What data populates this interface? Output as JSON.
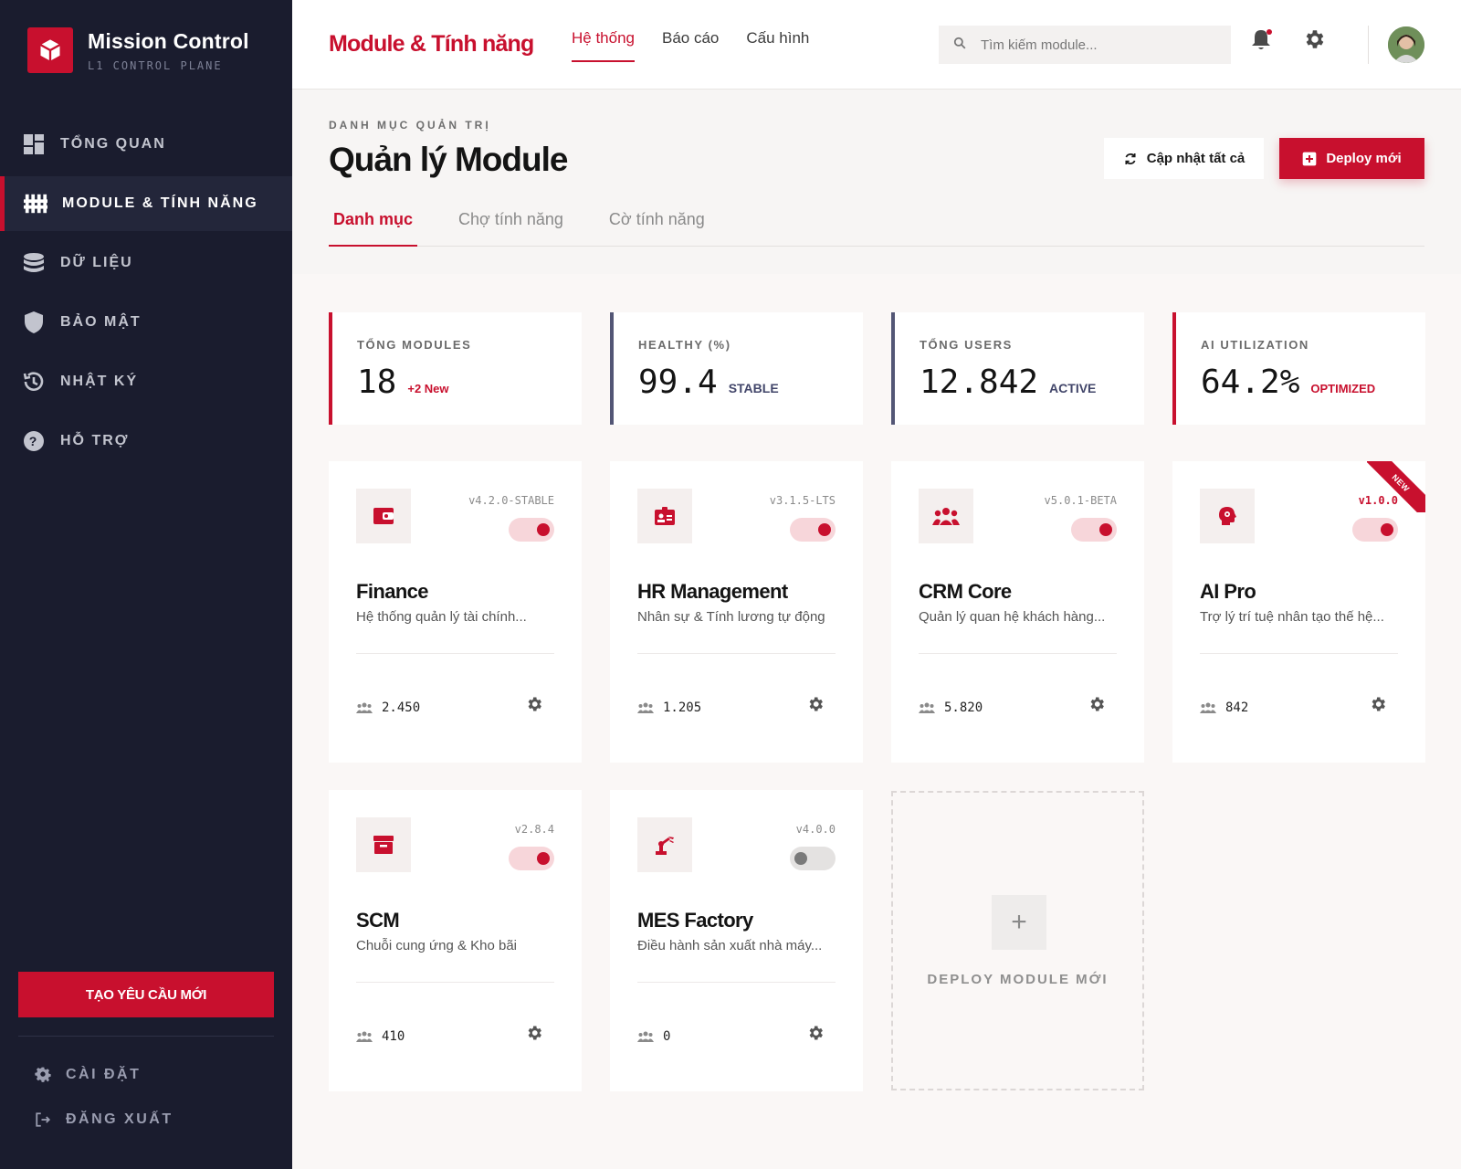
{
  "brand": {
    "title": "Mission Control",
    "subtitle": "L1 CONTROL PLANE"
  },
  "sidebar": {
    "items": [
      {
        "label": "TỔNG QUAN",
        "icon": "dashboard-icon"
      },
      {
        "label": "MODULE & TÍNH NĂNG",
        "icon": "modules-icon",
        "active": true
      },
      {
        "label": "DỮ LIỆU",
        "icon": "database-icon"
      },
      {
        "label": "BẢO MẬT",
        "icon": "shield-icon"
      },
      {
        "label": "NHẬT KÝ",
        "icon": "history-icon"
      },
      {
        "label": "HỖ TRỢ",
        "icon": "help-icon"
      }
    ],
    "cta_label": "TẠO YÊU CẦU MỚI",
    "settings_label": "CÀI ĐẶT",
    "logout_label": "ĐĂNG XUẤT"
  },
  "header": {
    "page_brand": "Module & Tính năng",
    "tabs": [
      {
        "label": "Hệ thống",
        "active": true
      },
      {
        "label": "Báo cáo"
      },
      {
        "label": "Cấu hình"
      }
    ],
    "search_placeholder": "Tìm kiếm module...",
    "notification_unread": true
  },
  "page": {
    "breadcrumb": "DANH MỤC QUẢN TRỊ",
    "title": "Quản lý Module",
    "refresh_label": "Cập nhật tất cả",
    "deploy_label": "Deploy mới",
    "tabs": [
      {
        "label": "Danh mục",
        "active": true
      },
      {
        "label": "Chợ tính năng"
      },
      {
        "label": "Cờ tính năng"
      }
    ]
  },
  "stats": [
    {
      "label": "TỔNG MODULES",
      "value": "18",
      "tag": "+2 New",
      "accent": "red"
    },
    {
      "label": "HEALTHY (%)",
      "value": "99.4",
      "tag": "STABLE",
      "accent": "blue"
    },
    {
      "label": "TỔNG USERS",
      "value": "12.842",
      "tag": "ACTIVE",
      "accent": "blue"
    },
    {
      "label": "AI UTILIZATION",
      "value": "64.2%",
      "tag": "OPTIMIZED",
      "accent": "red"
    }
  ],
  "modules": [
    {
      "name": "Finance",
      "desc": "Hệ thống quản lý tài chính...",
      "version": "v4.2.0-STABLE",
      "enabled": true,
      "users": "2.450",
      "icon": "wallet-icon"
    },
    {
      "name": "HR Management",
      "desc": "Nhân sự & Tính lương tự động",
      "version": "v3.1.5-LTS",
      "enabled": true,
      "users": "1.205",
      "icon": "id-badge-icon"
    },
    {
      "name": "CRM Core",
      "desc": "Quản lý quan hệ khách hàng...",
      "version": "v5.0.1-BETA",
      "enabled": true,
      "users": "5.820",
      "icon": "group-icon"
    },
    {
      "name": "AI Pro",
      "desc": "Trợ lý trí tuệ nhân tạo thế hệ...",
      "version": "v1.0.0",
      "enabled": true,
      "users": "842",
      "icon": "ai-head-icon",
      "badge": "NEW"
    },
    {
      "name": "SCM",
      "desc": "Chuỗi cung ứng & Kho bãi",
      "version": "v2.8.4",
      "enabled": true,
      "users": "410",
      "icon": "archive-icon"
    },
    {
      "name": "MES Factory",
      "desc": "Điều hành sản xuất nhà máy...",
      "version": "v4.0.0",
      "enabled": false,
      "users": "0",
      "icon": "robot-arm-icon"
    }
  ],
  "deploy_card": {
    "label": "DEPLOY MODULE MỚI",
    "plus": "+"
  },
  "colors": {
    "accent": "#c8102e",
    "sidebar_bg": "#1a1c2e",
    "stat_blue": "#535675"
  }
}
